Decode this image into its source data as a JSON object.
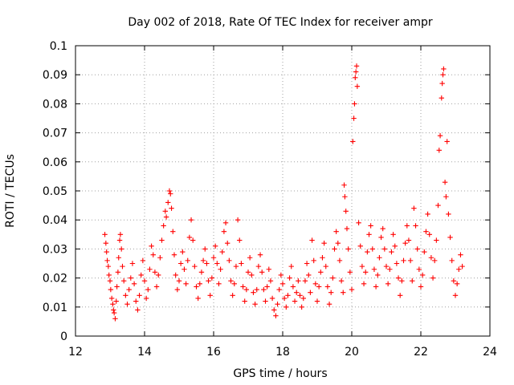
{
  "chart_data": {
    "type": "scatter",
    "title": "Day 002 of 2018, Rate Of TEC Index for receiver ampr",
    "xlabel": "GPS time / hours",
    "ylabel": "ROTI / TECUs",
    "xlim": [
      12,
      24
    ],
    "ylim": [
      0,
      0.1
    ],
    "xticks": [
      12,
      14,
      16,
      18,
      20,
      22,
      24
    ],
    "xtick_labels": [
      "12",
      "14",
      "16",
      "18",
      "20",
      "22",
      "24"
    ],
    "yticks": [
      0,
      0.01,
      0.02,
      0.03,
      0.04,
      0.05,
      0.06,
      0.07,
      0.08,
      0.09,
      0.1
    ],
    "ytick_labels": [
      "0",
      "0.01",
      "0.02",
      "0.03",
      "0.04",
      "0.05",
      "0.06",
      "0.07",
      "0.08",
      "0.09",
      "0.1"
    ],
    "grid": true,
    "marker": "+",
    "series": [
      {
        "name": "ROTI",
        "color": "#ff0000",
        "points": [
          [
            12.85,
            0.035
          ],
          [
            12.88,
            0.032
          ],
          [
            12.9,
            0.029
          ],
          [
            12.92,
            0.026
          ],
          [
            12.95,
            0.024
          ],
          [
            12.97,
            0.021
          ],
          [
            13.0,
            0.019
          ],
          [
            13.02,
            0.016
          ],
          [
            13.05,
            0.013
          ],
          [
            13.08,
            0.011
          ],
          [
            13.1,
            0.009
          ],
          [
            13.12,
            0.008
          ],
          [
            13.15,
            0.006
          ],
          [
            13.18,
            0.012
          ],
          [
            13.2,
            0.017
          ],
          [
            13.23,
            0.022
          ],
          [
            13.25,
            0.027
          ],
          [
            13.28,
            0.033
          ],
          [
            13.3,
            0.035
          ],
          [
            13.33,
            0.03
          ],
          [
            13.36,
            0.024
          ],
          [
            13.4,
            0.019
          ],
          [
            13.45,
            0.014
          ],
          [
            13.5,
            0.011
          ],
          [
            13.55,
            0.016
          ],
          [
            13.6,
            0.02
          ],
          [
            13.65,
            0.025
          ],
          [
            13.7,
            0.018
          ],
          [
            13.75,
            0.012
          ],
          [
            13.8,
            0.009
          ],
          [
            13.85,
            0.014
          ],
          [
            13.9,
            0.021
          ],
          [
            13.95,
            0.026
          ],
          [
            14.0,
            0.019
          ],
          [
            14.05,
            0.013
          ],
          [
            14.1,
            0.016
          ],
          [
            14.15,
            0.023
          ],
          [
            14.2,
            0.031
          ],
          [
            14.25,
            0.028
          ],
          [
            14.3,
            0.022
          ],
          [
            14.35,
            0.017
          ],
          [
            14.4,
            0.021
          ],
          [
            14.45,
            0.027
          ],
          [
            14.5,
            0.033
          ],
          [
            14.55,
            0.038
          ],
          [
            14.6,
            0.043
          ],
          [
            14.63,
            0.041
          ],
          [
            14.68,
            0.046
          ],
          [
            14.72,
            0.05
          ],
          [
            14.75,
            0.049
          ],
          [
            14.78,
            0.044
          ],
          [
            14.82,
            0.036
          ],
          [
            14.86,
            0.028
          ],
          [
            14.9,
            0.021
          ],
          [
            14.95,
            0.016
          ],
          [
            15.0,
            0.019
          ],
          [
            15.05,
            0.025
          ],
          [
            15.1,
            0.029
          ],
          [
            15.15,
            0.023
          ],
          [
            15.2,
            0.018
          ],
          [
            15.25,
            0.026
          ],
          [
            15.3,
            0.034
          ],
          [
            15.35,
            0.04
          ],
          [
            15.4,
            0.033
          ],
          [
            15.45,
            0.024
          ],
          [
            15.5,
            0.017
          ],
          [
            15.55,
            0.013
          ],
          [
            15.6,
            0.018
          ],
          [
            15.65,
            0.022
          ],
          [
            15.7,
            0.026
          ],
          [
            15.75,
            0.03
          ],
          [
            15.8,
            0.025
          ],
          [
            15.85,
            0.019
          ],
          [
            15.9,
            0.014
          ],
          [
            15.95,
            0.02
          ],
          [
            16.0,
            0.027
          ],
          [
            16.05,
            0.031
          ],
          [
            16.1,
            0.025
          ],
          [
            16.15,
            0.018
          ],
          [
            16.2,
            0.023
          ],
          [
            16.25,
            0.029
          ],
          [
            16.3,
            0.036
          ],
          [
            16.35,
            0.039
          ],
          [
            16.4,
            0.032
          ],
          [
            16.45,
            0.026
          ],
          [
            16.5,
            0.019
          ],
          [
            16.55,
            0.014
          ],
          [
            16.6,
            0.018
          ],
          [
            16.65,
            0.024
          ],
          [
            16.7,
            0.04
          ],
          [
            16.75,
            0.033
          ],
          [
            16.8,
            0.025
          ],
          [
            16.85,
            0.017
          ],
          [
            16.9,
            0.012
          ],
          [
            16.95,
            0.016
          ],
          [
            17.0,
            0.022
          ],
          [
            17.05,
            0.027
          ],
          [
            17.1,
            0.021
          ],
          [
            17.15,
            0.015
          ],
          [
            17.2,
            0.011
          ],
          [
            17.25,
            0.016
          ],
          [
            17.3,
            0.024
          ],
          [
            17.35,
            0.028
          ],
          [
            17.4,
            0.022
          ],
          [
            17.45,
            0.016
          ],
          [
            17.5,
            0.012
          ],
          [
            17.55,
            0.017
          ],
          [
            17.6,
            0.023
          ],
          [
            17.65,
            0.019
          ],
          [
            17.7,
            0.013
          ],
          [
            17.75,
            0.009
          ],
          [
            17.8,
            0.007
          ],
          [
            17.85,
            0.011
          ],
          [
            17.9,
            0.016
          ],
          [
            17.95,
            0.021
          ],
          [
            18.0,
            0.018
          ],
          [
            18.05,
            0.013
          ],
          [
            18.1,
            0.01
          ],
          [
            18.15,
            0.014
          ],
          [
            18.2,
            0.02
          ],
          [
            18.25,
            0.024
          ],
          [
            18.3,
            0.017
          ],
          [
            18.35,
            0.012
          ],
          [
            18.4,
            0.015
          ],
          [
            18.45,
            0.019
          ],
          [
            18.5,
            0.014
          ],
          [
            18.55,
            0.01
          ],
          [
            18.6,
            0.013
          ],
          [
            18.65,
            0.019
          ],
          [
            18.7,
            0.025
          ],
          [
            18.75,
            0.021
          ],
          [
            18.8,
            0.015
          ],
          [
            18.85,
            0.033
          ],
          [
            18.9,
            0.026
          ],
          [
            18.95,
            0.018
          ],
          [
            19.0,
            0.012
          ],
          [
            19.05,
            0.017
          ],
          [
            19.1,
            0.022
          ],
          [
            19.15,
            0.027
          ],
          [
            19.2,
            0.032
          ],
          [
            19.25,
            0.024
          ],
          [
            19.3,
            0.017
          ],
          [
            19.35,
            0.011
          ],
          [
            19.4,
            0.015
          ],
          [
            19.45,
            0.02
          ],
          [
            19.5,
            0.03
          ],
          [
            19.55,
            0.036
          ],
          [
            19.6,
            0.032
          ],
          [
            19.65,
            0.026
          ],
          [
            19.7,
            0.019
          ],
          [
            19.75,
            0.015
          ],
          [
            19.78,
            0.052
          ],
          [
            19.8,
            0.048
          ],
          [
            19.83,
            0.043
          ],
          [
            19.86,
            0.037
          ],
          [
            19.9,
            0.03
          ],
          [
            19.95,
            0.022
          ],
          [
            20.0,
            0.016
          ],
          [
            20.03,
            0.067
          ],
          [
            20.06,
            0.075
          ],
          [
            20.08,
            0.08
          ],
          [
            20.1,
            0.089
          ],
          [
            20.12,
            0.091
          ],
          [
            20.14,
            0.093
          ],
          [
            20.16,
            0.086
          ],
          [
            20.2,
            0.039
          ],
          [
            20.25,
            0.031
          ],
          [
            20.3,
            0.024
          ],
          [
            20.35,
            0.018
          ],
          [
            20.4,
            0.022
          ],
          [
            20.45,
            0.029
          ],
          [
            20.5,
            0.035
          ],
          [
            20.55,
            0.038
          ],
          [
            20.6,
            0.03
          ],
          [
            20.65,
            0.023
          ],
          [
            20.7,
            0.017
          ],
          [
            20.75,
            0.021
          ],
          [
            20.8,
            0.027
          ],
          [
            20.85,
            0.034
          ],
          [
            20.9,
            0.037
          ],
          [
            20.95,
            0.03
          ],
          [
            21.0,
            0.024
          ],
          [
            21.05,
            0.018
          ],
          [
            21.1,
            0.023
          ],
          [
            21.15,
            0.029
          ],
          [
            21.2,
            0.035
          ],
          [
            21.25,
            0.031
          ],
          [
            21.3,
            0.025
          ],
          [
            21.35,
            0.02
          ],
          [
            21.4,
            0.014
          ],
          [
            21.45,
            0.019
          ],
          [
            21.5,
            0.026
          ],
          [
            21.55,
            0.032
          ],
          [
            21.6,
            0.038
          ],
          [
            21.65,
            0.033
          ],
          [
            21.7,
            0.026
          ],
          [
            21.75,
            0.019
          ],
          [
            21.8,
            0.044
          ],
          [
            21.85,
            0.038
          ],
          [
            21.9,
            0.03
          ],
          [
            21.95,
            0.023
          ],
          [
            22.0,
            0.017
          ],
          [
            22.05,
            0.021
          ],
          [
            22.1,
            0.029
          ],
          [
            22.15,
            0.036
          ],
          [
            22.2,
            0.042
          ],
          [
            22.25,
            0.035
          ],
          [
            22.3,
            0.027
          ],
          [
            22.35,
            0.02
          ],
          [
            22.4,
            0.026
          ],
          [
            22.45,
            0.033
          ],
          [
            22.5,
            0.045
          ],
          [
            22.53,
            0.064
          ],
          [
            22.56,
            0.069
          ],
          [
            22.6,
            0.082
          ],
          [
            22.62,
            0.087
          ],
          [
            22.64,
            0.09
          ],
          [
            22.66,
            0.092
          ],
          [
            22.7,
            0.053
          ],
          [
            22.73,
            0.048
          ],
          [
            22.76,
            0.067
          ],
          [
            22.8,
            0.042
          ],
          [
            22.85,
            0.034
          ],
          [
            22.9,
            0.026
          ],
          [
            22.95,
            0.019
          ],
          [
            23.0,
            0.014
          ],
          [
            23.05,
            0.018
          ],
          [
            23.1,
            0.023
          ],
          [
            23.15,
            0.028
          ],
          [
            23.2,
            0.024
          ]
        ]
      }
    ]
  }
}
